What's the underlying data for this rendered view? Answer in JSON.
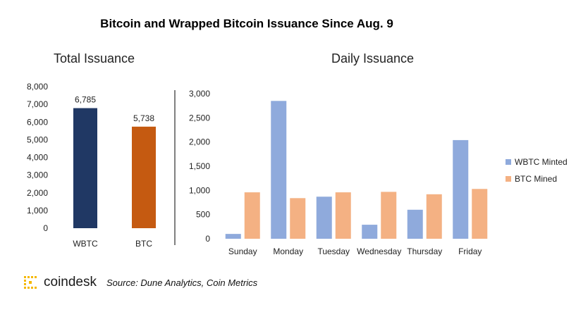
{
  "title": "Bitcoin and Wrapped  Bitcoin Issuance Since Aug. 9",
  "footer": {
    "logo_text": "coindesk",
    "source": "Source: Dune Analytics, Coin Metrics"
  },
  "colors": {
    "wbtc_total": "#203864",
    "btc_total": "#c55a11",
    "wbtc_daily": "#8faadc",
    "btc_daily": "#f4b183",
    "logo": "#f5b800"
  },
  "chart_data": [
    {
      "type": "bar",
      "title": "Total Issuance",
      "categories": [
        "WBTC",
        "BTC"
      ],
      "values": [
        6785,
        5738
      ],
      "data_labels": [
        "6,785",
        "5,738"
      ],
      "ylim": [
        0,
        8000
      ],
      "yticks": [
        "0",
        "1,000",
        "2,000",
        "3,000",
        "4,000",
        "5,000",
        "6,000",
        "7,000",
        "8,000"
      ],
      "grid": false
    },
    {
      "type": "bar",
      "title": "Daily Issuance",
      "categories": [
        "Sunday",
        "Monday",
        "Tuesday",
        "Wednesday",
        "Thursday",
        "Friday"
      ],
      "series": [
        {
          "name": "WBTC Minted",
          "values": [
            100,
            2850,
            870,
            290,
            600,
            2040
          ]
        },
        {
          "name": "BTC Mined",
          "values": [
            960,
            840,
            960,
            970,
            920,
            1030
          ]
        }
      ],
      "ylim": [
        0,
        3000
      ],
      "yticks": [
        "0",
        "500",
        "1,000",
        "1,500",
        "2,000",
        "2,500",
        "3,000"
      ],
      "legend": "right",
      "grid": false
    }
  ]
}
